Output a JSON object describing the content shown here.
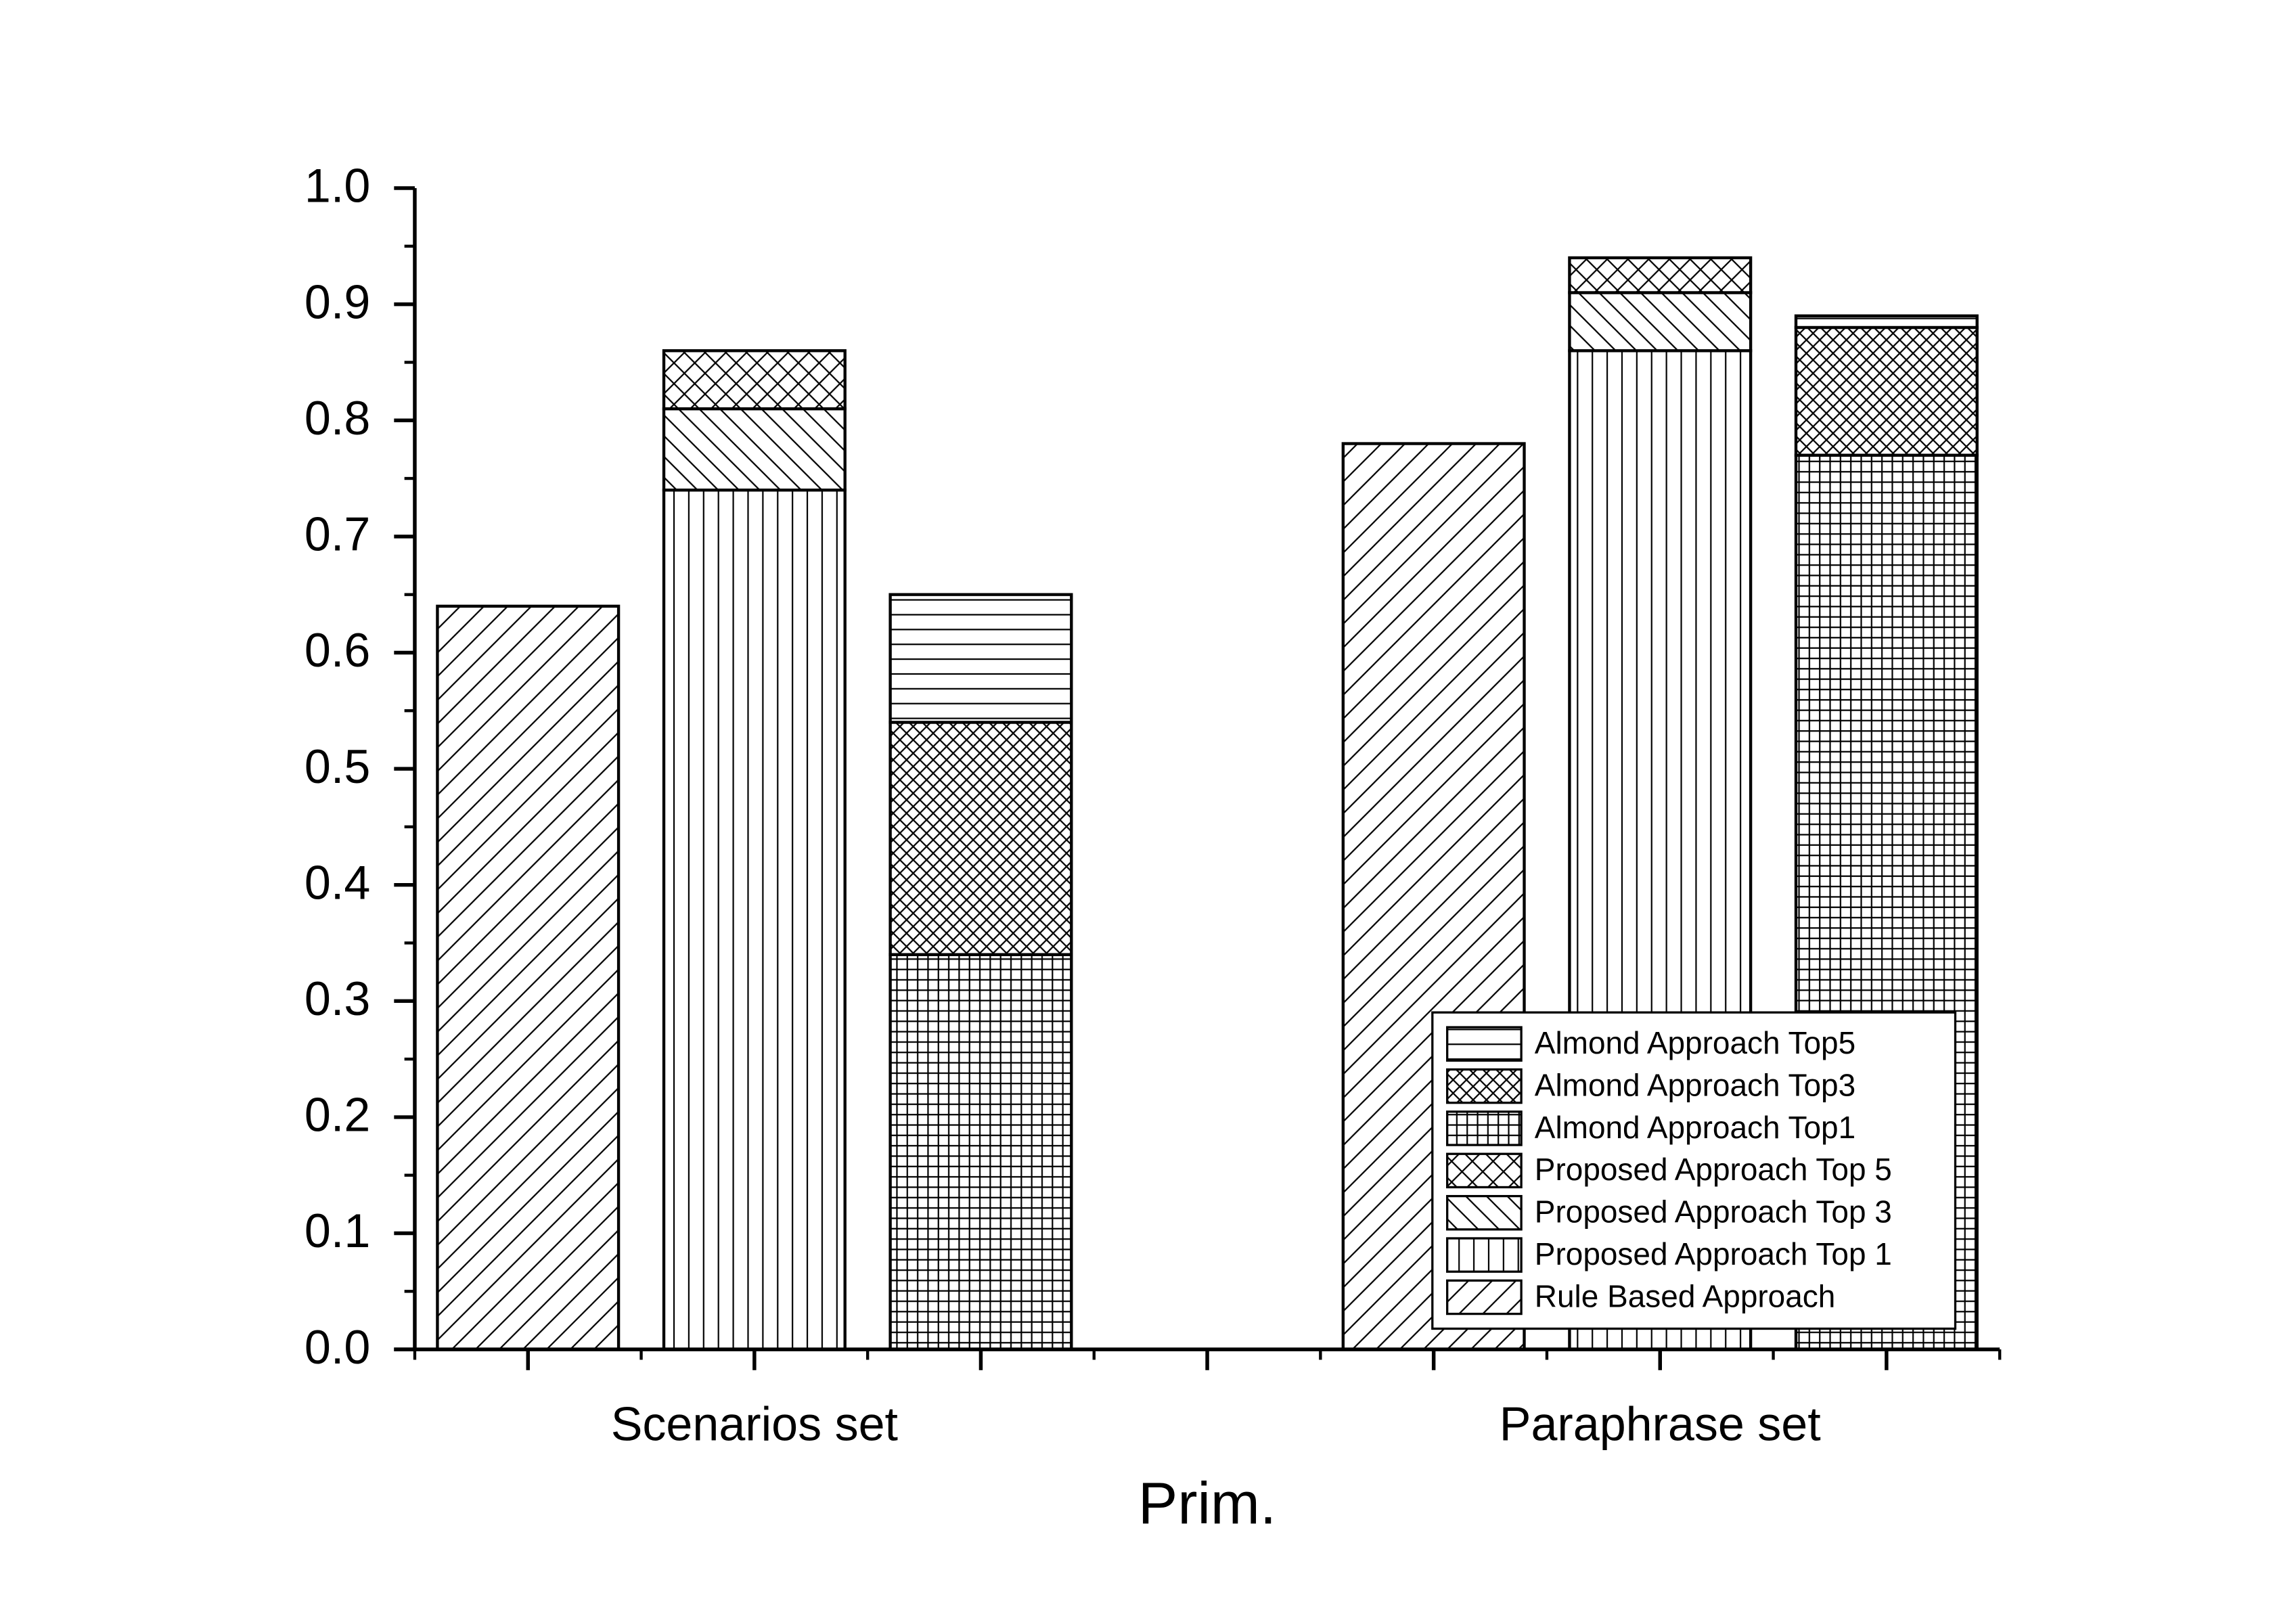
{
  "chart_data": {
    "type": "bar",
    "stacked": true,
    "xlabel": "Prim.",
    "categories": [
      "Scenarios set",
      "Paraphrase set"
    ],
    "bars": [
      {
        "series": [
          {
            "name": "Rule Based Approach",
            "pattern": "slash",
            "values": [
              0.64,
              0.78
            ]
          }
        ]
      },
      {
        "series": [
          {
            "name": "Proposed Approach Top 1",
            "pattern": "vertical",
            "values": [
              0.74,
              0.86
            ]
          },
          {
            "name": "Proposed Approach Top 3",
            "pattern": "backslash",
            "values": [
              0.07,
              0.05
            ]
          },
          {
            "name": "Proposed Approach Top 5",
            "pattern": "crosshatch",
            "values": [
              0.05,
              0.03
            ]
          }
        ]
      },
      {
        "series": [
          {
            "name": "Almond Approach Top1",
            "pattern": "grid",
            "values": [
              0.34,
              0.77
            ]
          },
          {
            "name": "Almond Approach Top3",
            "pattern": "dense-crosshatch",
            "values": [
              0.2,
              0.11
            ]
          },
          {
            "name": "Almond Approach Top5",
            "pattern": "horizontal",
            "values": [
              0.11,
              0.01
            ]
          }
        ]
      }
    ],
    "color": "#000000",
    "ylim": [
      0,
      1
    ],
    "yticks": [
      {
        "value": 0,
        "label": "0.0"
      },
      0.1,
      0.2,
      0.3,
      0.4,
      0.5,
      0.6,
      0.7,
      0.8,
      0.9,
      {
        "value": 1,
        "label": "1.0"
      }
    ],
    "legend": "lower right"
  }
}
